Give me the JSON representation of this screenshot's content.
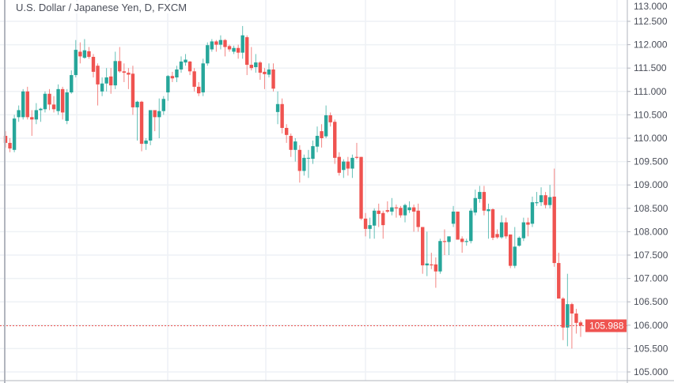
{
  "title": "U.S. Dollar / Japanese Yen, D, FXCM",
  "colors": {
    "up": "#26a69a",
    "down": "#ef5350",
    "grid": "#eef1f5",
    "axis": "#4a4e59"
  },
  "chart_data": {
    "type": "candlestick",
    "title": "U.S. Dollar / Japanese Yen, D, FXCM",
    "ylim": [
      105.0,
      113.0
    ],
    "yticks": [
      "105.000",
      "105.500",
      "106.000",
      "106.500",
      "107.000",
      "107.500",
      "108.000",
      "108.500",
      "109.000",
      "109.500",
      "110.000",
      "110.500",
      "111.000",
      "111.500",
      "112.000",
      "112.500",
      "113.000"
    ],
    "grid": true,
    "last_price": "105.988",
    "ohlc": [
      [
        110.05,
        110.15,
        109.8,
        109.9
      ],
      [
        109.9,
        110.0,
        109.7,
        109.78
      ],
      [
        109.75,
        110.5,
        109.7,
        110.42
      ],
      [
        110.45,
        110.7,
        110.35,
        110.6
      ],
      [
        110.45,
        111.05,
        110.4,
        111.0
      ],
      [
        111.0,
        111.1,
        110.4,
        110.45
      ],
      [
        110.45,
        110.6,
        110.05,
        110.4
      ],
      [
        110.4,
        110.75,
        110.3,
        110.6
      ],
      [
        110.6,
        110.65,
        110.35,
        110.63
      ],
      [
        110.62,
        111.0,
        110.55,
        110.95
      ],
      [
        110.95,
        111.05,
        110.6,
        110.72
      ],
      [
        110.72,
        110.9,
        110.55,
        110.62
      ],
      [
        110.58,
        111.15,
        110.5,
        111.05
      ],
      [
        111.05,
        111.1,
        110.4,
        110.55
      ],
      [
        110.37,
        111.05,
        110.3,
        110.98
      ],
      [
        110.98,
        111.45,
        110.95,
        111.35
      ],
      [
        111.35,
        112.1,
        111.3,
        111.89
      ],
      [
        111.85,
        112.05,
        111.6,
        111.75
      ],
      [
        111.72,
        112.12,
        111.7,
        111.88
      ],
      [
        111.86,
        111.95,
        111.7,
        111.74
      ],
      [
        111.74,
        111.8,
        111.3,
        111.42
      ],
      [
        111.55,
        111.6,
        110.7,
        111.15
      ],
      [
        111.0,
        111.3,
        110.9,
        111.17
      ],
      [
        111.17,
        111.5,
        111.0,
        111.3
      ],
      [
        111.32,
        111.5,
        110.95,
        111.13
      ],
      [
        111.13,
        111.85,
        111.05,
        111.65
      ],
      [
        111.65,
        111.95,
        111.4,
        111.43
      ],
      [
        111.43,
        111.6,
        111.2,
        111.4
      ],
      [
        111.4,
        111.5,
        111.05,
        111.36
      ],
      [
        111.38,
        111.55,
        110.5,
        110.66
      ],
      [
        110.66,
        110.8,
        109.95,
        110.78
      ],
      [
        110.78,
        110.8,
        109.72,
        109.88
      ],
      [
        109.88,
        110.0,
        109.75,
        109.95
      ],
      [
        109.95,
        110.6,
        109.85,
        110.6
      ],
      [
        110.6,
        110.6,
        110.15,
        110.45
      ],
      [
        110.45,
        110.85,
        110.0,
        110.58
      ],
      [
        110.58,
        110.9,
        110.5,
        110.84
      ],
      [
        110.98,
        111.35,
        110.8,
        111.33
      ],
      [
        111.33,
        111.42,
        111.2,
        111.28
      ],
      [
        111.3,
        111.55,
        111.2,
        111.47
      ],
      [
        111.47,
        111.75,
        111.4,
        111.64
      ],
      [
        111.62,
        111.8,
        111.55,
        111.68
      ],
      [
        111.64,
        111.65,
        111.35,
        111.43
      ],
      [
        111.43,
        111.5,
        111.0,
        111.1
      ],
      [
        111.1,
        111.2,
        110.9,
        110.96
      ],
      [
        110.98,
        111.7,
        110.9,
        111.6
      ],
      [
        111.6,
        112.05,
        111.55,
        111.99
      ],
      [
        111.9,
        112.12,
        111.85,
        112.07
      ],
      [
        112.07,
        112.1,
        111.85,
        112.0
      ],
      [
        112.0,
        112.2,
        111.9,
        112.1
      ],
      [
        112.1,
        112.12,
        111.75,
        111.95
      ],
      [
        111.97,
        112.0,
        111.85,
        111.9
      ],
      [
        111.85,
        111.98,
        111.8,
        111.93
      ],
      [
        111.93,
        112.0,
        111.7,
        111.83
      ],
      [
        111.83,
        112.4,
        111.7,
        112.2
      ],
      [
        112.16,
        112.2,
        111.35,
        111.57
      ],
      [
        111.57,
        111.95,
        111.45,
        111.5
      ],
      [
        111.52,
        111.8,
        111.4,
        111.62
      ],
      [
        111.62,
        111.65,
        111.25,
        111.4
      ],
      [
        111.42,
        111.5,
        111.05,
        111.37
      ],
      [
        111.36,
        111.6,
        111.3,
        111.47
      ],
      [
        111.47,
        111.6,
        111.0,
        111.06
      ],
      [
        110.56,
        111.0,
        110.3,
        110.73
      ],
      [
        110.73,
        110.85,
        110.1,
        110.22
      ],
      [
        110.22,
        110.3,
        109.9,
        110.07
      ],
      [
        110.05,
        110.1,
        109.6,
        109.75
      ],
      [
        109.75,
        110.0,
        109.5,
        109.93
      ],
      [
        109.75,
        109.85,
        109.05,
        109.3
      ],
      [
        109.3,
        109.65,
        109.2,
        109.58
      ],
      [
        109.58,
        109.75,
        109.15,
        109.58
      ],
      [
        109.56,
        109.95,
        109.45,
        109.83
      ],
      [
        109.82,
        110.25,
        109.7,
        110.05
      ],
      [
        110.15,
        110.3,
        109.8,
        110.0
      ],
      [
        110.04,
        110.7,
        110.0,
        110.49
      ],
      [
        110.49,
        110.55,
        110.25,
        110.34
      ],
      [
        110.35,
        110.4,
        109.45,
        109.58
      ],
      [
        109.6,
        109.7,
        109.2,
        109.26
      ],
      [
        109.32,
        109.55,
        109.15,
        109.5
      ],
      [
        109.5,
        109.6,
        109.2,
        109.35
      ],
      [
        109.35,
        109.65,
        109.15,
        109.58
      ],
      [
        109.6,
        109.9,
        109.55,
        109.58
      ],
      [
        109.6,
        109.6,
        108.25,
        108.28
      ],
      [
        108.28,
        108.4,
        107.9,
        108.06
      ],
      [
        108.06,
        108.3,
        107.85,
        108.14
      ],
      [
        108.13,
        108.5,
        107.85,
        108.45
      ],
      [
        108.45,
        108.6,
        108.1,
        108.38
      ],
      [
        108.4,
        108.45,
        107.85,
        108.14
      ],
      [
        108.46,
        108.65,
        108.4,
        108.43
      ],
      [
        108.43,
        108.72,
        108.35,
        108.52
      ],
      [
        108.52,
        108.58,
        108.3,
        108.5
      ],
      [
        108.51,
        108.55,
        108.3,
        108.35
      ],
      [
        108.35,
        108.6,
        108.2,
        108.57
      ],
      [
        108.46,
        108.65,
        108.4,
        108.52
      ],
      [
        108.52,
        108.58,
        108.0,
        108.43
      ],
      [
        108.45,
        108.6,
        108.0,
        108.1
      ],
      [
        108.1,
        108.1,
        107.1,
        107.28
      ],
      [
        107.28,
        108.0,
        107.05,
        107.32
      ],
      [
        107.3,
        107.55,
        107.2,
        107.28
      ],
      [
        107.3,
        107.45,
        106.8,
        107.15
      ],
      [
        107.15,
        107.85,
        107.1,
        107.8
      ],
      [
        107.8,
        108.05,
        107.5,
        107.78
      ],
      [
        107.78,
        107.9,
        107.5,
        107.9
      ],
      [
        108.17,
        108.55,
        108.1,
        108.43
      ],
      [
        108.43,
        108.43,
        107.85,
        107.83
      ],
      [
        107.85,
        107.9,
        107.55,
        107.78
      ],
      [
        107.78,
        107.85,
        107.7,
        107.8
      ],
      [
        107.8,
        108.5,
        107.75,
        108.45
      ],
      [
        108.41,
        108.9,
        108.35,
        108.72
      ],
      [
        108.7,
        108.98,
        108.62,
        108.85
      ],
      [
        108.85,
        108.98,
        108.35,
        108.45
      ],
      [
        108.44,
        108.6,
        107.85,
        108.48
      ],
      [
        108.48,
        108.5,
        107.82,
        107.87
      ],
      [
        107.95,
        108.05,
        107.85,
        107.88
      ],
      [
        107.88,
        108.35,
        107.85,
        108.2
      ],
      [
        108.2,
        108.3,
        107.85,
        107.9
      ],
      [
        107.94,
        107.94,
        107.22,
        107.27
      ],
      [
        107.27,
        108.1,
        107.22,
        107.68
      ],
      [
        107.7,
        107.9,
        107.68,
        107.87
      ],
      [
        107.86,
        108.3,
        107.8,
        108.2
      ],
      [
        108.2,
        108.3,
        107.9,
        108.15
      ],
      [
        108.17,
        108.75,
        108.1,
        108.63
      ],
      [
        108.61,
        108.85,
        108.55,
        108.63
      ],
      [
        108.63,
        108.95,
        108.55,
        108.78
      ],
      [
        108.78,
        108.85,
        108.5,
        108.57
      ],
      [
        108.57,
        109.0,
        108.5,
        108.74
      ],
      [
        108.75,
        109.35,
        107.25,
        107.33
      ],
      [
        107.33,
        107.55,
        106.57,
        106.57
      ],
      [
        106.57,
        106.6,
        105.68,
        105.95
      ],
      [
        105.95,
        107.1,
        105.55,
        106.45
      ],
      [
        106.45,
        106.48,
        105.5,
        106.25
      ],
      [
        106.25,
        106.35,
        105.82,
        106.05
      ],
      [
        106.06,
        106.1,
        105.75,
        105.99
      ]
    ]
  }
}
